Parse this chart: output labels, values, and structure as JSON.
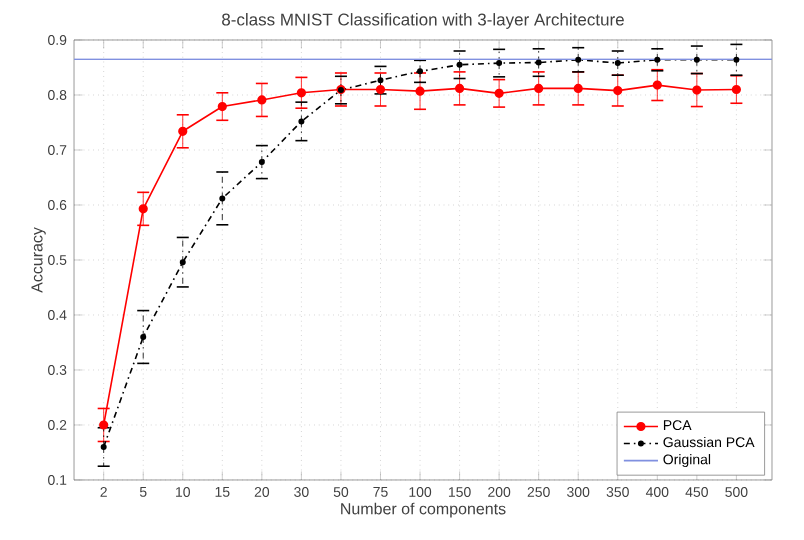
{
  "chart_data": {
    "type": "line",
    "title": "8-class MNIST Classification with 3-layer Architecture",
    "xlabel": "Number of components",
    "ylabel": "Accuracy",
    "categories": [
      "2",
      "5",
      "10",
      "15",
      "20",
      "30",
      "50",
      "75",
      "100",
      "150",
      "200",
      "250",
      "300",
      "350",
      "400",
      "450",
      "500"
    ],
    "series": [
      {
        "name": "PCA",
        "color": "#ff0000",
        "line_style": "solid",
        "values": [
          0.2,
          0.593,
          0.734,
          0.779,
          0.791,
          0.804,
          0.81,
          0.81,
          0.807,
          0.812,
          0.803,
          0.812,
          0.812,
          0.808,
          0.818,
          0.809,
          0.81
        ],
        "errors": [
          0.03,
          0.03,
          0.03,
          0.025,
          0.03,
          0.028,
          0.03,
          0.03,
          0.033,
          0.03,
          0.025,
          0.03,
          0.03,
          0.028,
          0.028,
          0.03,
          0.025
        ]
      },
      {
        "name": "Gaussian PCA",
        "color": "#000000",
        "line_style": "dashed",
        "values": [
          0.16,
          0.36,
          0.496,
          0.612,
          0.678,
          0.752,
          0.809,
          0.827,
          0.843,
          0.855,
          0.858,
          0.859,
          0.864,
          0.858,
          0.864,
          0.864,
          0.864
        ],
        "errors": [
          0.035,
          0.048,
          0.045,
          0.048,
          0.03,
          0.035,
          0.025,
          0.025,
          0.02,
          0.025,
          0.025,
          0.025,
          0.022,
          0.022,
          0.02,
          0.025,
          0.028
        ]
      }
    ],
    "ref_lines": [
      {
        "axis": "y",
        "value": 0.865,
        "label": "Original",
        "color": "#8090e0"
      }
    ],
    "ylim": [
      0.1,
      0.9
    ],
    "yticks": [
      0.1,
      0.2,
      0.3,
      0.4,
      0.5,
      0.6,
      0.7,
      0.8,
      0.9
    ],
    "grid": true,
    "legend": "bottom right",
    "marker": "circle"
  }
}
